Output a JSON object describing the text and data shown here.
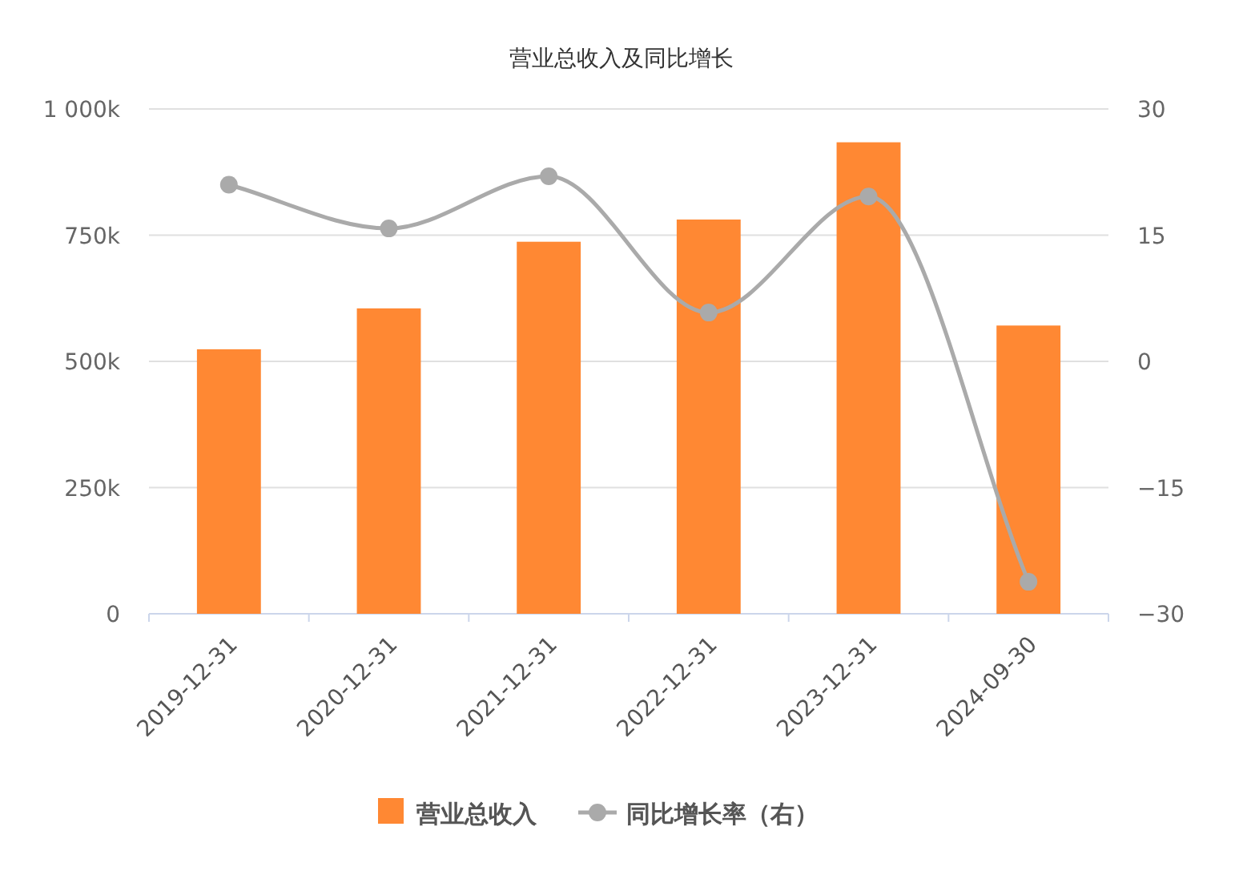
{
  "chart_data": {
    "type": "bar",
    "title": "营业总收入及同比增长",
    "categories": [
      "2019-12-31",
      "2020-12-31",
      "2021-12-31",
      "2022-12-31",
      "2023-12-31",
      "2024-09-30"
    ],
    "series": [
      {
        "name": "营业总收入",
        "color": "#ff8833",
        "values": [
          524,
          605,
          737,
          781,
          934,
          571
        ]
      },
      {
        "name": "同比增长率（右）",
        "type": "line",
        "axis": "y2",
        "color": "#aaaaaa",
        "marker": "circle",
        "values": [
          21.0,
          15.8,
          22.0,
          5.8,
          19.6,
          -26.2
        ]
      }
    ],
    "ylim": [
      0,
      1000
    ],
    "yticks": [
      {
        "value": 0,
        "label": "0"
      },
      {
        "value": 250,
        "label": "250k"
      },
      {
        "value": 500,
        "label": "500k"
      },
      {
        "value": 750,
        "label": "750k"
      },
      {
        "value": 1000,
        "label": "1 000k"
      }
    ],
    "y2lim": [
      -30,
      30
    ],
    "y2ticks": [
      {
        "value": -30,
        "label": "−30"
      },
      {
        "value": -15,
        "label": "−15"
      },
      0,
      15,
      30
    ],
    "grid": "y",
    "legend": "bottom"
  }
}
